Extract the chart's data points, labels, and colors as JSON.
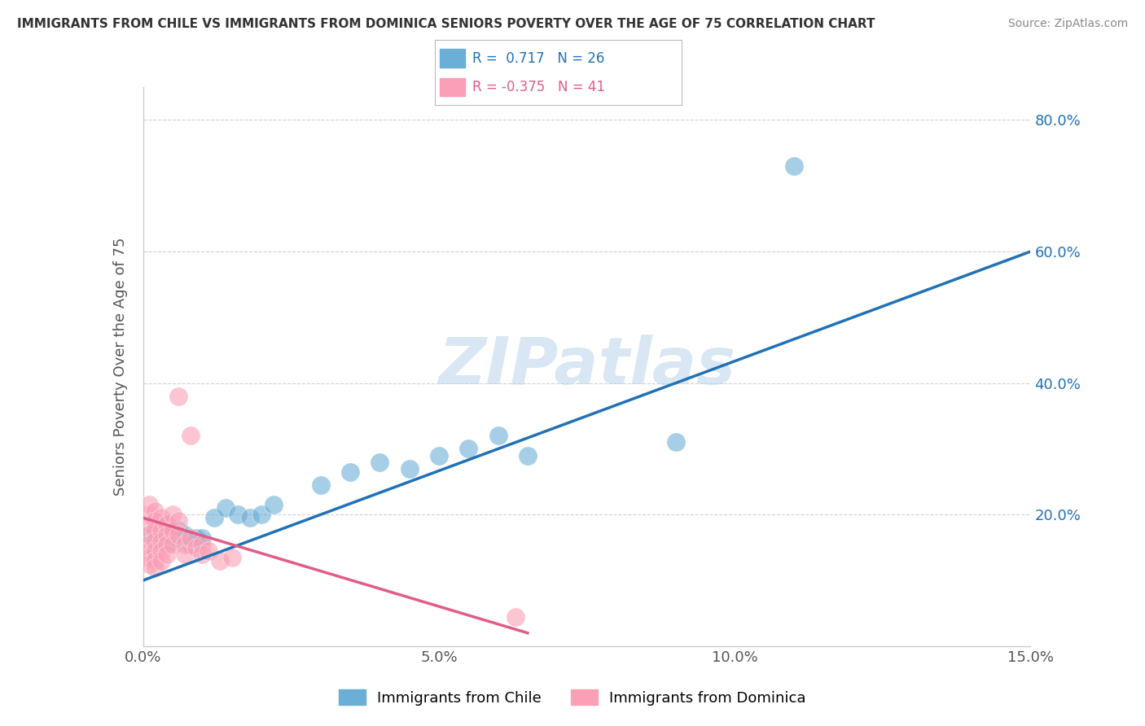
{
  "title": "IMMIGRANTS FROM CHILE VS IMMIGRANTS FROM DOMINICA SENIORS POVERTY OVER THE AGE OF 75 CORRELATION CHART",
  "source": "Source: ZipAtlas.com",
  "ylabel": "Seniors Poverty Over the Age of 75",
  "xlim": [
    0.0,
    0.15
  ],
  "ylim": [
    0.0,
    0.85
  ],
  "x_ticks": [
    0.0,
    0.05,
    0.1,
    0.15
  ],
  "x_tick_labels": [
    "0.0%",
    "5.0%",
    "10.0%",
    "15.0%"
  ],
  "y_ticks": [
    0.2,
    0.4,
    0.6,
    0.8
  ],
  "y_tick_labels": [
    "20.0%",
    "40.0%",
    "60.0%",
    "80.0%"
  ],
  "chile_color": "#6baed6",
  "dominica_color": "#fa9fb5",
  "chile_R": 0.717,
  "chile_N": 26,
  "dominica_R": -0.375,
  "dominica_N": 41,
  "chile_line_color": "#2171b5",
  "dominica_line_color": "#e05c8a",
  "watermark_text": "ZIPatlas",
  "chile_points": [
    [
      0.001,
      0.17
    ],
    [
      0.002,
      0.165
    ],
    [
      0.003,
      0.155
    ],
    [
      0.004,
      0.185
    ],
    [
      0.005,
      0.16
    ],
    [
      0.006,
      0.175
    ],
    [
      0.007,
      0.17
    ],
    [
      0.008,
      0.155
    ],
    [
      0.009,
      0.165
    ],
    [
      0.01,
      0.165
    ],
    [
      0.012,
      0.195
    ],
    [
      0.014,
      0.21
    ],
    [
      0.016,
      0.2
    ],
    [
      0.018,
      0.195
    ],
    [
      0.02,
      0.2
    ],
    [
      0.022,
      0.215
    ],
    [
      0.03,
      0.245
    ],
    [
      0.035,
      0.265
    ],
    [
      0.04,
      0.28
    ],
    [
      0.045,
      0.27
    ],
    [
      0.05,
      0.29
    ],
    [
      0.055,
      0.3
    ],
    [
      0.06,
      0.32
    ],
    [
      0.065,
      0.29
    ],
    [
      0.09,
      0.31
    ],
    [
      0.11,
      0.73
    ]
  ],
  "dominica_points": [
    [
      0.001,
      0.2
    ],
    [
      0.001,
      0.215
    ],
    [
      0.001,
      0.185
    ],
    [
      0.001,
      0.17
    ],
    [
      0.001,
      0.155
    ],
    [
      0.001,
      0.145
    ],
    [
      0.001,
      0.135
    ],
    [
      0.001,
      0.125
    ],
    [
      0.002,
      0.205
    ],
    [
      0.002,
      0.19
    ],
    [
      0.002,
      0.175
    ],
    [
      0.002,
      0.16
    ],
    [
      0.002,
      0.145
    ],
    [
      0.002,
      0.13
    ],
    [
      0.002,
      0.12
    ],
    [
      0.003,
      0.195
    ],
    [
      0.003,
      0.175
    ],
    [
      0.003,
      0.16
    ],
    [
      0.003,
      0.145
    ],
    [
      0.003,
      0.13
    ],
    [
      0.004,
      0.185
    ],
    [
      0.004,
      0.17
    ],
    [
      0.004,
      0.155
    ],
    [
      0.004,
      0.14
    ],
    [
      0.005,
      0.2
    ],
    [
      0.005,
      0.175
    ],
    [
      0.005,
      0.155
    ],
    [
      0.006,
      0.19
    ],
    [
      0.006,
      0.17
    ],
    [
      0.006,
      0.38
    ],
    [
      0.007,
      0.155
    ],
    [
      0.007,
      0.14
    ],
    [
      0.008,
      0.165
    ],
    [
      0.008,
      0.32
    ],
    [
      0.009,
      0.15
    ],
    [
      0.01,
      0.155
    ],
    [
      0.01,
      0.14
    ],
    [
      0.011,
      0.145
    ],
    [
      0.013,
      0.13
    ],
    [
      0.015,
      0.135
    ],
    [
      0.063,
      0.045
    ]
  ]
}
